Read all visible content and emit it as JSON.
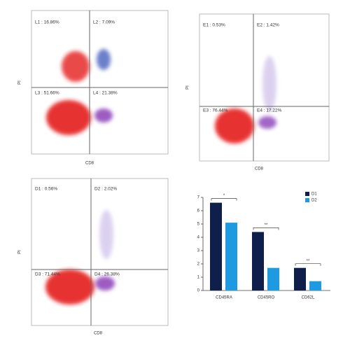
{
  "flow_plots": [
    {
      "x_label": "CD8",
      "y_label": "PI",
      "quadrants": [
        "L1 : 16.86%",
        "L2 : 7.09%",
        "L3 : 51.66%",
        "L4 : 21.38%"
      ]
    },
    {
      "x_label": "CD8",
      "y_label": "PI",
      "quadrants": [
        "E1 : 0.53%",
        "E2 : 1.42%",
        "E3 : 76.44%",
        "E4 : 17.22%"
      ]
    },
    {
      "x_label": "CD8",
      "y_label": "PI",
      "quadrants": [
        "D1 : 0.56%",
        "D2 : 2.02%",
        "D3 : 71.44%",
        "D4 : 26.38%"
      ]
    }
  ],
  "chart_data": {
    "type": "bar",
    "categories": [
      "CD45RA",
      "CD45RO",
      "CD62L"
    ],
    "series": [
      {
        "name": "D1",
        "color": "#0d1f4a",
        "values": [
          6.6,
          4.4,
          1.7
        ]
      },
      {
        "name": "D2",
        "color": "#1e9be0",
        "values": [
          5.1,
          1.7,
          0.7
        ]
      }
    ],
    "annotations": [
      "*",
      "**",
      "**"
    ],
    "ylim": [
      0,
      7
    ],
    "yticks": [
      0,
      1,
      2,
      3,
      4,
      5,
      6,
      7
    ],
    "legend": "upper-right"
  }
}
